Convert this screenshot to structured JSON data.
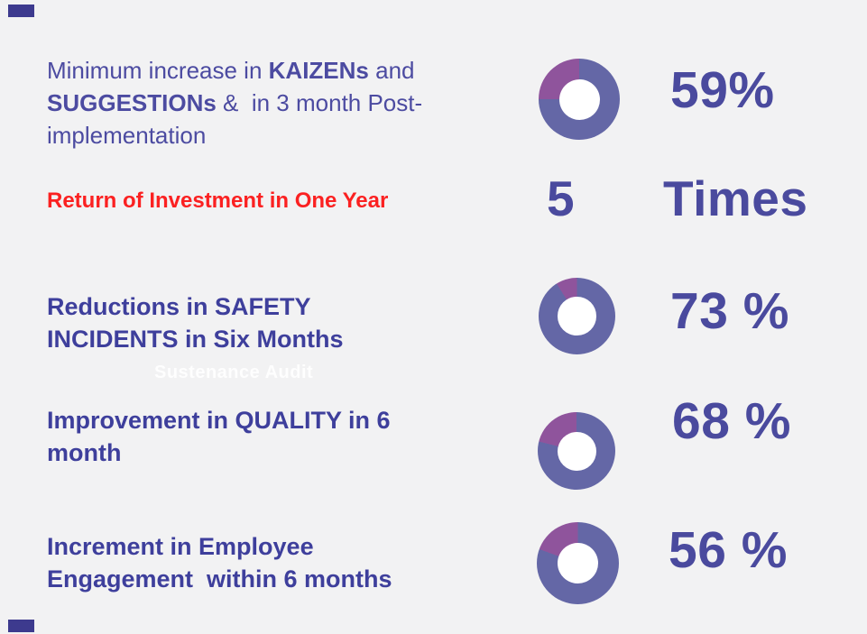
{
  "slide": {
    "background": "#f2f2f3",
    "watermark": "Sustenance Audit"
  },
  "colors": {
    "label_indigo": "#4c4ba1",
    "label_indigo_dark": "#3e3f9c",
    "alert_red": "#fb2121",
    "value_indigo": "#4a4a9e",
    "donut_primary": "#6467a6",
    "donut_secondary": "#8f549c",
    "donut_hole": "#ffffff",
    "edge_mark": "#3d3a8e",
    "watermark_text": "#ffffff"
  },
  "rows": [
    {
      "id": "kaizen-suggestions",
      "label_parts": [
        {
          "text": "Minimum increase in ",
          "bold": false
        },
        {
          "text": "KAIZENs",
          "bold": true
        },
        {
          "text": " and\n",
          "bold": false
        },
        {
          "text": "SUGGESTIONs",
          "bold": true
        },
        {
          "text": " &  in 3 month Post-\nimplementation",
          "bold": false
        }
      ],
      "value": "59%",
      "visual": {
        "type": "donut",
        "percent": 59,
        "wedge_deg": 90
      }
    },
    {
      "id": "return-on-investment",
      "label_parts": [
        {
          "text": "Return of Investment in One Year",
          "bold": false
        }
      ],
      "value": "5",
      "unit": "Times",
      "visual": {
        "type": "number"
      }
    },
    {
      "id": "safety-incidents",
      "label_parts": [
        {
          "text": "Reductions in SAFETY\nINCIDENTS in Six Months",
          "bold": false
        }
      ],
      "value": "73 %",
      "visual": {
        "type": "donut",
        "percent": 73,
        "wedge_deg": 32
      }
    },
    {
      "id": "quality-improvement",
      "label_parts": [
        {
          "text": "Improvement in QUALITY in 6\nmonth",
          "bold": false
        }
      ],
      "value": "68 %",
      "visual": {
        "type": "donut",
        "percent": 68,
        "wedge_deg": 76
      }
    },
    {
      "id": "employee-engagement",
      "label_parts": [
        {
          "text": "Increment in Employee\nEngagement  within 6 months",
          "bold": false
        }
      ],
      "value": "56 %",
      "visual": {
        "type": "donut",
        "percent": 56,
        "wedge_deg": 70
      }
    }
  ],
  "chart_data": [
    {
      "type": "pie",
      "subtype": "donut",
      "title": "Minimum increase in KAIZENs and SUGGESTIONs &  in 3 month Post-implementation",
      "value_label": "59%",
      "value_pct": 59,
      "segments": [
        {
          "name": "primary",
          "deg": 270
        },
        {
          "name": "secondary",
          "deg": 90
        }
      ],
      "colors": [
        "#6467a6",
        "#8f549c"
      ],
      "legend": "off"
    },
    {
      "type": "table",
      "title": "Return of Investment in One Year",
      "value": 5,
      "unit": "Times"
    },
    {
      "type": "pie",
      "subtype": "donut",
      "title": "Reductions in SAFETY INCIDENTS in Six Months",
      "value_label": "73 %",
      "value_pct": 73,
      "segments": [
        {
          "name": "primary",
          "deg": 328
        },
        {
          "name": "secondary",
          "deg": 32
        }
      ],
      "colors": [
        "#6467a6",
        "#8f549c"
      ],
      "legend": "off"
    },
    {
      "type": "pie",
      "subtype": "donut",
      "title": "Improvement in QUALITY in 6 month",
      "value_label": "68 %",
      "value_pct": 68,
      "segments": [
        {
          "name": "primary",
          "deg": 284
        },
        {
          "name": "secondary",
          "deg": 76
        }
      ],
      "colors": [
        "#6467a6",
        "#8f549c"
      ],
      "legend": "off"
    },
    {
      "type": "pie",
      "subtype": "donut",
      "title": "Increment in Employee Engagement within 6 months",
      "value_label": "56 %",
      "value_pct": 56,
      "segments": [
        {
          "name": "primary",
          "deg": 290
        },
        {
          "name": "secondary",
          "deg": 70
        }
      ],
      "colors": [
        "#6467a6",
        "#8f549c"
      ],
      "legend": "off"
    }
  ]
}
